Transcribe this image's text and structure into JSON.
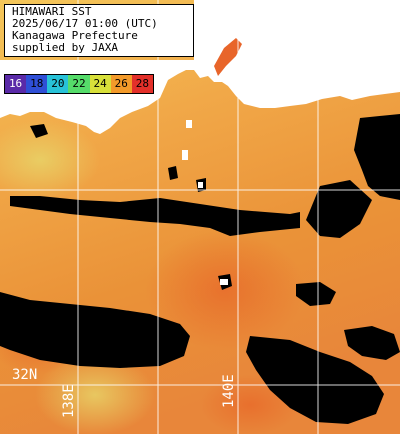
{
  "info": {
    "line1": "HIMAWARI SST",
    "line2": "2025/06/17 01:00 (UTC)",
    "line3": "Kanagawa Prefecture",
    "line4": "supplied by JAXA"
  },
  "legend": {
    "items": [
      {
        "label": "16",
        "color": "#5a2aa8",
        "text": "light"
      },
      {
        "label": "18",
        "color": "#2f4fd6",
        "text": "dark"
      },
      {
        "label": "20",
        "color": "#28c2d8",
        "text": "dark"
      },
      {
        "label": "22",
        "color": "#55dc6a",
        "text": "dark"
      },
      {
        "label": "24",
        "color": "#d8e03a",
        "text": "dark"
      },
      {
        "label": "26",
        "color": "#f39a2a",
        "text": "dark"
      },
      {
        "label": "28",
        "color": "#e3302a",
        "text": "dark"
      }
    ]
  },
  "grid": {
    "lat_label": "32N",
    "lon_labels": [
      "138E",
      "140E"
    ]
  },
  "colors": {
    "land": "#ffffff",
    "no_data": "#000000",
    "sea_warm": "#e8923a",
    "sea_cool": "#f5b84a",
    "sea_coastal": "#f2cf5a",
    "gridline": "#ffffff"
  }
}
